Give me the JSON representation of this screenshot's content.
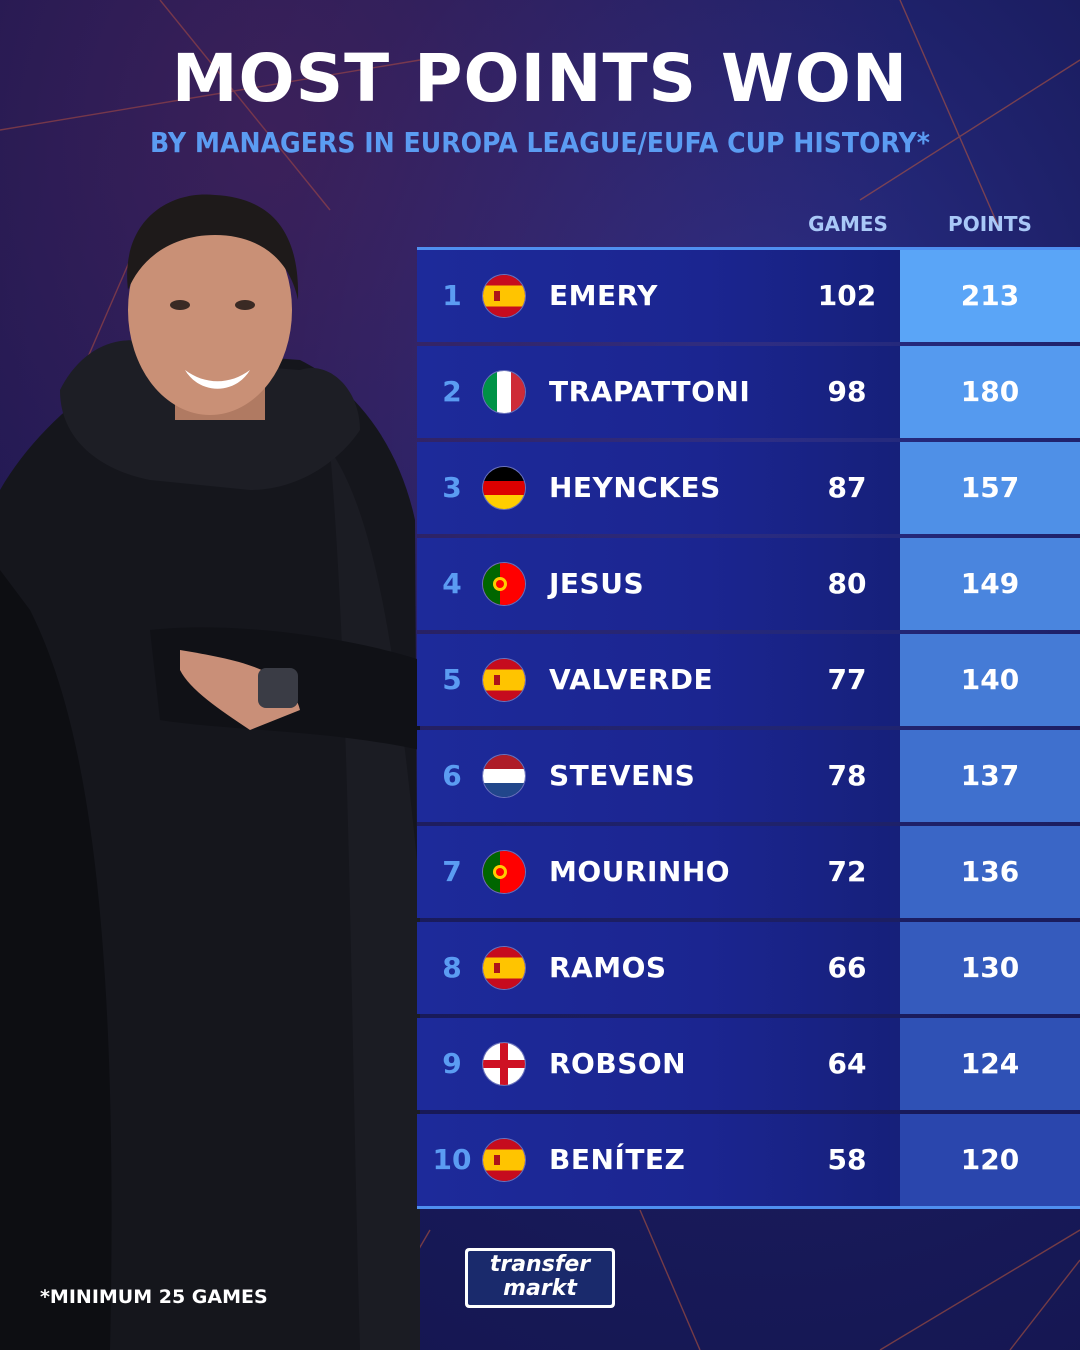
{
  "title": "MOST POINTS WON",
  "subtitle": "BY MANAGERS IN EUROPA LEAGUE/EUFA CUP HISTORY*",
  "columns": {
    "games": "GAMES",
    "points": "POINTS"
  },
  "footnote": "*MINIMUM 25 GAMES",
  "logo": {
    "line1": "transfer",
    "line2": "markt"
  },
  "colors": {
    "rank": "#5b9cf2",
    "points_top": "#5aa5f7",
    "points_bottom": "#2a46ad",
    "row_bg": "#1c2794"
  },
  "chart_data": {
    "type": "table",
    "title": "MOST POINTS WON",
    "subtitle": "BY MANAGERS IN EUROPA LEAGUE/EUFA CUP HISTORY*",
    "columns": [
      "GAMES",
      "POINTS"
    ],
    "rows": [
      {
        "rank": "1",
        "name": "EMERY",
        "flag": "spain-flag-icon",
        "games": "102",
        "points": "213",
        "points_value": 213
      },
      {
        "rank": "2",
        "name": "TRAPATTONI",
        "flag": "italy-flag-icon",
        "games": "98",
        "points": "180",
        "points_value": 180
      },
      {
        "rank": "3",
        "name": "HEYNCKES",
        "flag": "germany-flag-icon",
        "games": "87",
        "points": "157",
        "points_value": 157
      },
      {
        "rank": "4",
        "name": "JESUS",
        "flag": "portugal-flag-icon",
        "games": "80",
        "points": "149",
        "points_value": 149
      },
      {
        "rank": "5",
        "name": "VALVERDE",
        "flag": "spain-flag-icon",
        "games": "77",
        "points": "140",
        "points_value": 140
      },
      {
        "rank": "6",
        "name": "STEVENS",
        "flag": "netherlands-flag-icon",
        "games": "78",
        "points": "137",
        "points_value": 137
      },
      {
        "rank": "7",
        "name": "MOURINHO",
        "flag": "portugal-flag-icon",
        "games": "72",
        "points": "136",
        "points_value": 136
      },
      {
        "rank": "8",
        "name": "RAMOS",
        "flag": "spain-flag-icon",
        "games": "66",
        "points": "130",
        "points_value": 130
      },
      {
        "rank": "9",
        "name": "ROBSON",
        "flag": "england-flag-icon",
        "games": "64",
        "points": "124",
        "points_value": 124
      },
      {
        "rank": "10",
        "name": "BENÍTEZ",
        "flag": "spain-flag-icon",
        "games": "58",
        "points": "120",
        "points_value": 120
      }
    ]
  }
}
